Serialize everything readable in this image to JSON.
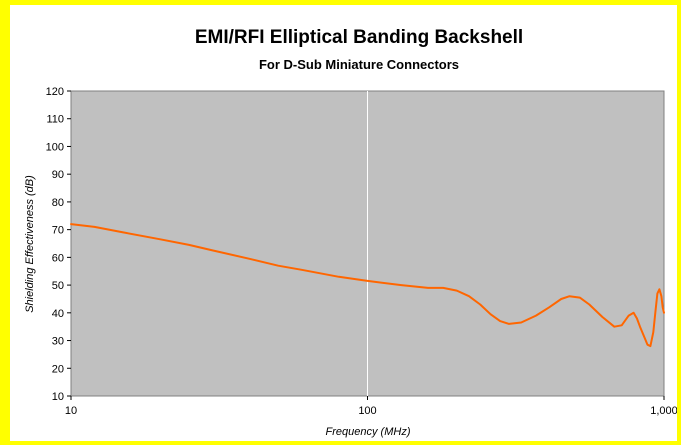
{
  "chart_data": {
    "type": "line",
    "title": "EMI/RFI Elliptical Banding Backshell",
    "subtitle": "For D-Sub Miniature Connectors",
    "xlabel": "Frequency (MHz)",
    "ylabel": "Shielding Effectiveness (dB)",
    "x_scale": "log",
    "xlim": [
      10,
      1000
    ],
    "ylim": [
      10,
      120
    ],
    "x_ticks": [
      10,
      100,
      1000
    ],
    "x_tick_labels": [
      "10",
      "100",
      "1,000"
    ],
    "y_ticks": [
      10,
      20,
      30,
      40,
      50,
      60,
      70,
      80,
      90,
      100,
      110,
      120
    ],
    "y_tick_labels": [
      "10",
      "20",
      "30",
      "40",
      "50",
      "60",
      "70",
      "80",
      "90",
      "100",
      "110",
      "120"
    ],
    "grid": "vertical gridlines at x ticks",
    "legend": "none",
    "series": [
      {
        "color": "#ff6600",
        "x": [
          10,
          12,
          15,
          20,
          25,
          30,
          40,
          50,
          60,
          80,
          100,
          130,
          160,
          180,
          200,
          220,
          240,
          260,
          280,
          300,
          330,
          370,
          410,
          450,
          480,
          520,
          560,
          620,
          680,
          720,
          760,
          790,
          810,
          830,
          860,
          880,
          900,
          920,
          935,
          950,
          965,
          980,
          990,
          1000
        ],
        "y": [
          72,
          71,
          69,
          66.5,
          64.5,
          62.5,
          59.5,
          57,
          55.5,
          53,
          51.5,
          50,
          49,
          49,
          48,
          46,
          43,
          39.5,
          37,
          36,
          36.5,
          39,
          42,
          45,
          46,
          45.5,
          43,
          38.5,
          35,
          35.5,
          39,
          40,
          38,
          35,
          31,
          28.5,
          28,
          33,
          40,
          47,
          48.5,
          46,
          42,
          40
        ]
      }
    ]
  }
}
